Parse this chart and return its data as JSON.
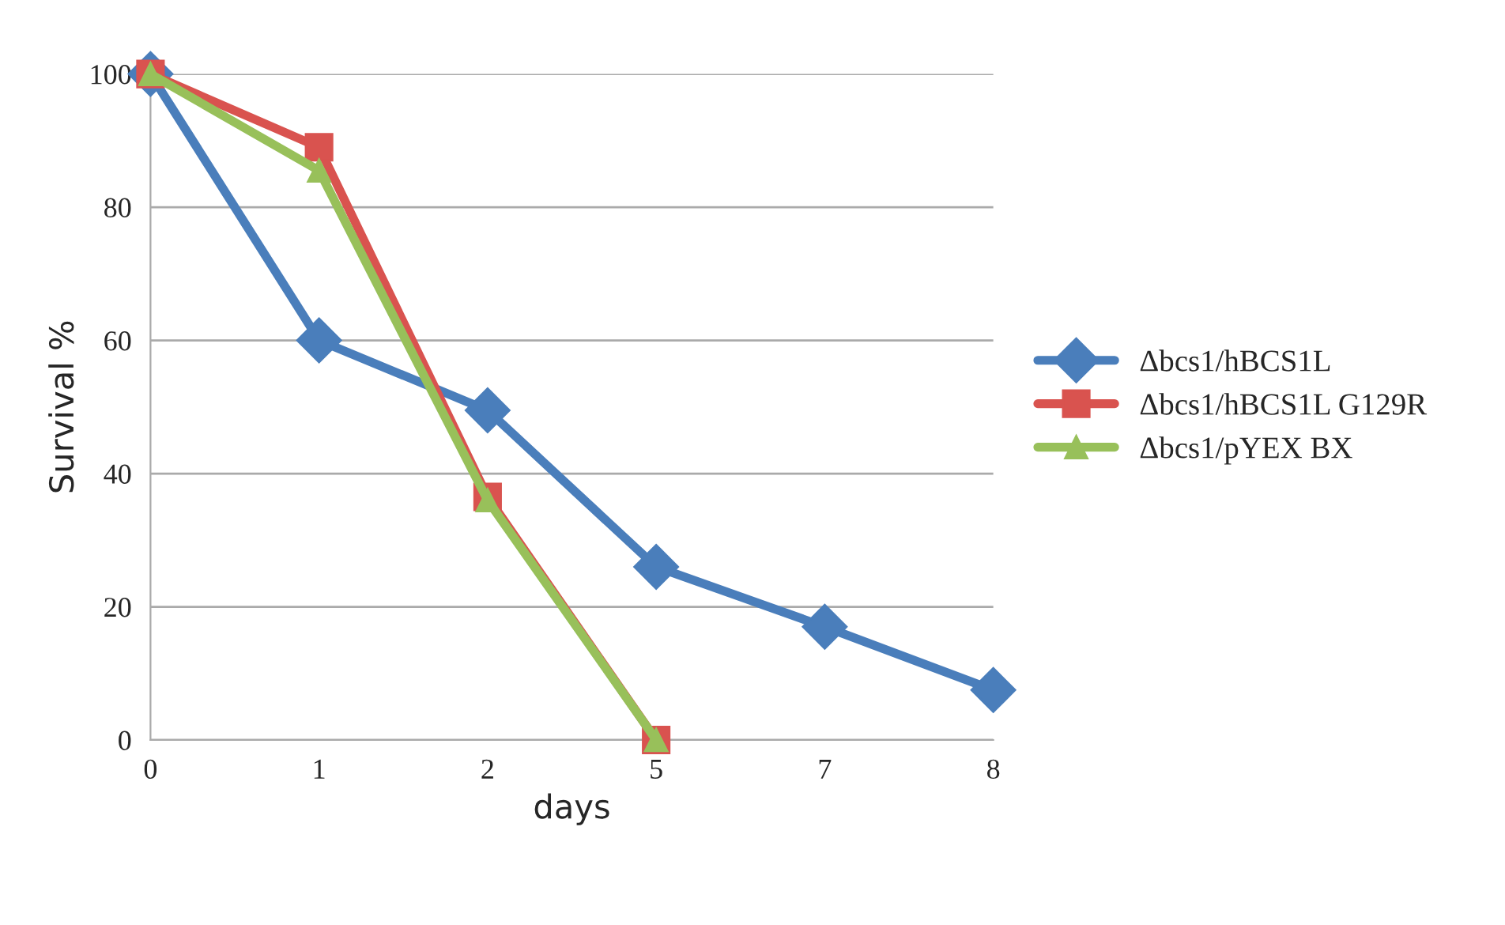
{
  "chart_data": {
    "type": "line",
    "xlabel": "days",
    "ylabel": "Survival %",
    "categories": [
      "0",
      "1",
      "2",
      "5",
      "7",
      "8"
    ],
    "series": [
      {
        "name": "Δbcs1/hBCS1L",
        "color": "#4a7ebb",
        "marker": "diamond",
        "values": [
          100,
          60,
          49.5,
          26,
          17,
          7.5
        ]
      },
      {
        "name": "Δbcs1/hBCS1L G129R",
        "color": "#d9534f",
        "marker": "square",
        "values": [
          100,
          89,
          36.5,
          0,
          null,
          null
        ]
      },
      {
        "name": "Δbcs1/pYEX BX",
        "color": "#98c05a",
        "marker": "triangle",
        "values": [
          100,
          85.5,
          36,
          0,
          null,
          null
        ]
      }
    ],
    "ylim": [
      0,
      100
    ],
    "yticks": [
      0,
      20,
      40,
      60,
      80,
      100
    ],
    "grid": "y",
    "legend": "right",
    "line_style": "solid"
  }
}
